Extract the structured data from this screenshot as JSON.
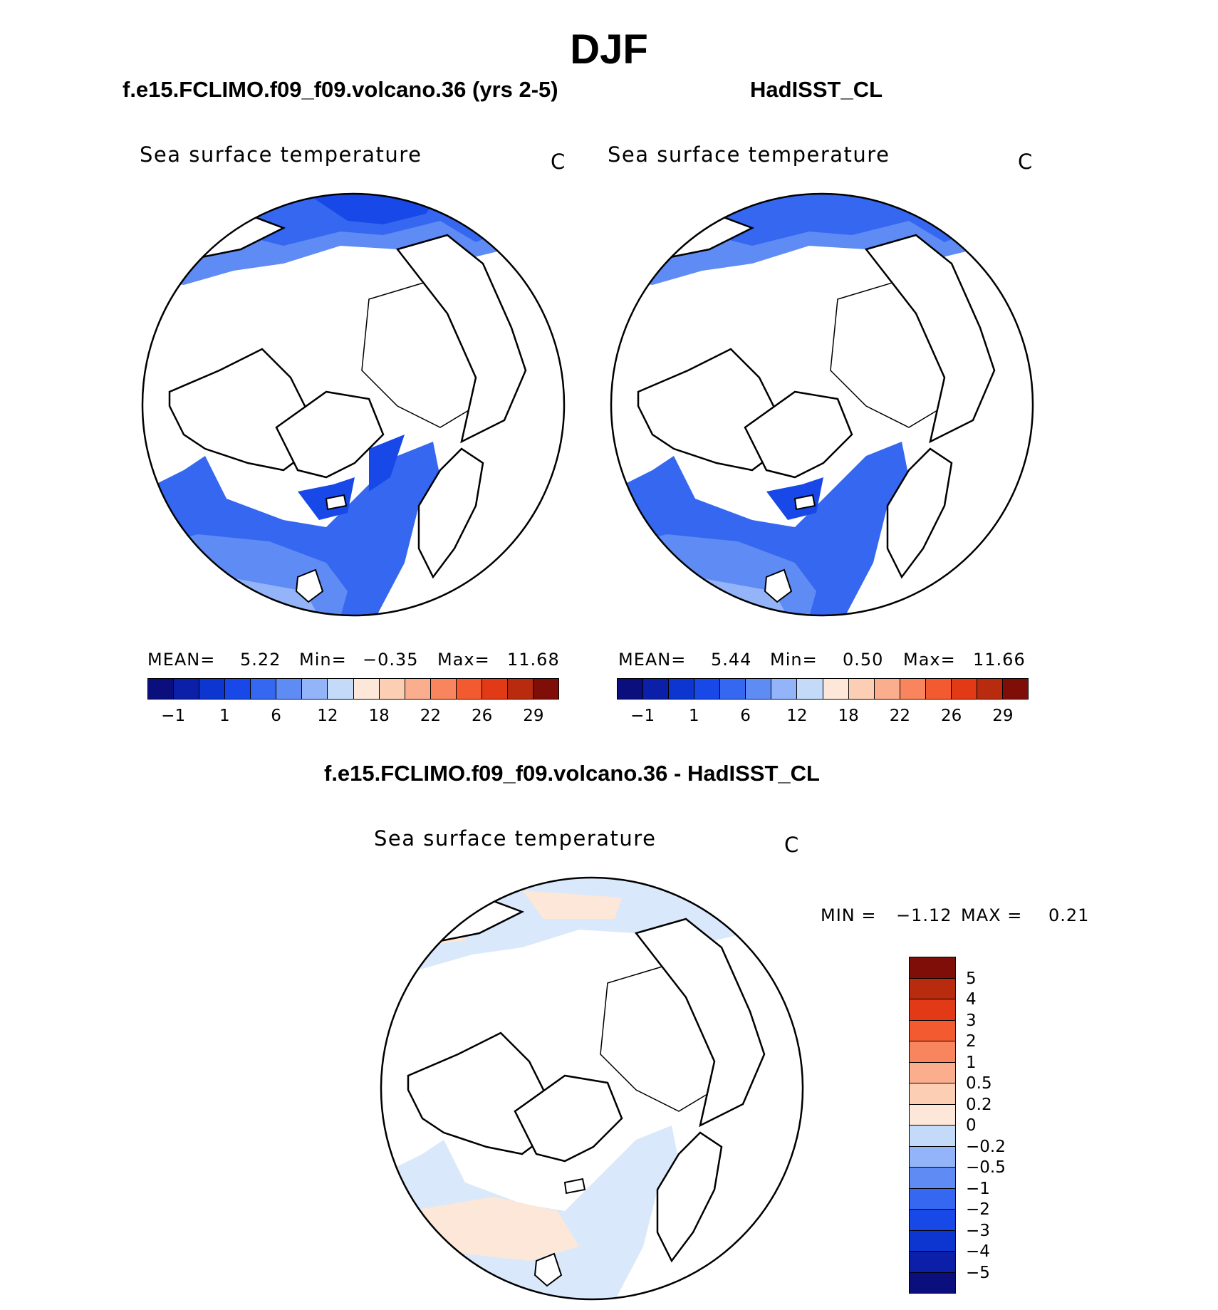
{
  "figure": {
    "suptitle": "DJF"
  },
  "panels": [
    {
      "title": "f.e15.FCLIMO.f09_f09.volcano.36 (yrs 2-5)",
      "variable": "Sea surface temperature",
      "units": "C",
      "stats": {
        "mean_label": "MEAN=",
        "mean": "5.22",
        "min_label": "Min=",
        "min": "−0.35",
        "max_label": "Max=",
        "max": "11.68"
      }
    },
    {
      "title": "HadISST_CL",
      "variable": "Sea surface temperature",
      "units": "C",
      "stats": {
        "mean_label": "MEAN=",
        "mean": "5.44",
        "min_label": "Min=",
        "min": "0.50",
        "max_label": "Max=",
        "max": "11.66"
      }
    },
    {
      "title": "f.e15.FCLIMO.f09_f09.volcano.36 - HadISST_CL",
      "variable": "Sea surface temperature",
      "units": "C",
      "stats": {
        "min_label": "MIN =",
        "min": "−1.12",
        "max_label": "MAX =",
        "max": "0.21"
      }
    }
  ],
  "colorbar_abs": {
    "colors": [
      "#0a0f7d",
      "#0b1fa8",
      "#0d35d0",
      "#1849e8",
      "#3567f0",
      "#5f8bf4",
      "#93b4f8",
      "#c4daf9",
      "#fde7d8",
      "#fccfb5",
      "#fbae8d",
      "#f8855d",
      "#f45a30",
      "#e23a16",
      "#b82b0e",
      "#7f0e08"
    ],
    "tick_labels": [
      "−1",
      "1",
      "6",
      "12",
      "18",
      "22",
      "26",
      "29"
    ]
  },
  "colorbar_diff": {
    "colors": [
      "#0a0f7d",
      "#0b1fa8",
      "#0d35d0",
      "#1849e8",
      "#3567f0",
      "#5f8bf4",
      "#93b4f8",
      "#c4daf9",
      "#fde7d8",
      "#fccfb5",
      "#fbae8d",
      "#f8855d",
      "#f45a30",
      "#e23a16",
      "#b82b0e",
      "#7f0e08"
    ],
    "tick_labels": [
      "5",
      "4",
      "3",
      "2",
      "1",
      "0.5",
      "0.2",
      "0",
      "−0.2",
      "−0.5",
      "−1",
      "−2",
      "−3",
      "−4",
      "−5"
    ]
  },
  "map_colors": {
    "sst_dark": "#1849e8",
    "sst_mid": "#3567f0",
    "sst_light": "#5f8bf4",
    "sst_pale": "#93b4f8",
    "sst_faint": "#c4daf9",
    "diff_neg": "#d9e8fb",
    "diff_pos": "#fde7d8",
    "land": "#ffffff",
    "coast": "#000000"
  }
}
